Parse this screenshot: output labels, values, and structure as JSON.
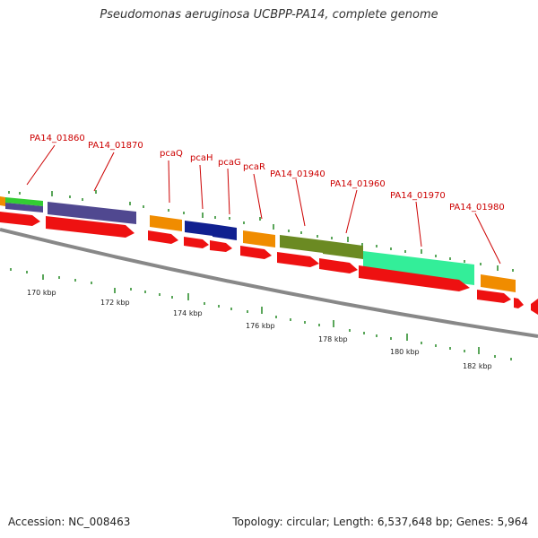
{
  "title": "Pseudomonas aeruginosa UCBPP-PA14, complete genome",
  "footer": {
    "accession": "Accession: NC_008463",
    "summary": "Topology: circular; Length: 6,537,648 bp; Genes: 5,964"
  },
  "gene_labels": [
    "PA14_01860",
    "PA14_01870",
    "pcaQ",
    "pcaH",
    "pcaG",
    "pcaR",
    "PA14_01940",
    "PA14_01960",
    "PA14_01970",
    "PA14_01980"
  ],
  "kbp_labels": [
    "170 kbp",
    "172 kbp",
    "174 kbp",
    "176 kbp",
    "178 kbp",
    "180 kbp",
    "182 kbp"
  ],
  "colors": {
    "arrow_red": "#ee1111",
    "backbone": "#888888",
    "tick_green": "#228822",
    "cog_orange": "#f08c00",
    "cog_purple": "#504890",
    "cog_navy": "#102090",
    "cog_olive": "#6b8a22",
    "cog_mint": "#33ee99",
    "cog_green": "#33cc33",
    "label_red": "#cc0000"
  }
}
